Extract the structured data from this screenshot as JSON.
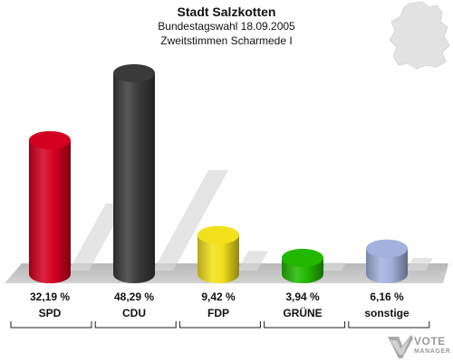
{
  "header": {
    "title": "Stadt Salzkotten",
    "subtitle": "Bundestagswahl 18.09.2005",
    "subtitle2": "Zweitstimmen Scharmede I"
  },
  "chart_data": {
    "type": "bar",
    "title": "Stadt Salzkotten",
    "subtitle": "Bundestagswahl 18.09.2005 Zweitstimmen Scharmede I",
    "categories": [
      "SPD",
      "CDU",
      "FDP",
      "GRÜNE",
      "sonstige"
    ],
    "values": [
      32.19,
      48.29,
      9.42,
      3.94,
      6.16
    ],
    "value_labels": [
      "32,19 %",
      "48,29 %",
      "9,42 %",
      "3,94 %",
      "6,16 %"
    ],
    "colors": [
      "#d4001f",
      "#3a3a3a",
      "#f2e01a",
      "#22b800",
      "#a3b1dc"
    ],
    "ylim": [
      0,
      50
    ],
    "xlabel": "",
    "ylabel": "",
    "grid": false,
    "legend": "none"
  },
  "logo": {
    "line1": "VOTE",
    "line2": "MANAGER",
    "icon": "vote-manager-checkmark-icon"
  },
  "decoration": {
    "map_icon": "germany-map-icon",
    "map_color": "#e2e2e2",
    "floor_color": "#c8c8c8"
  }
}
